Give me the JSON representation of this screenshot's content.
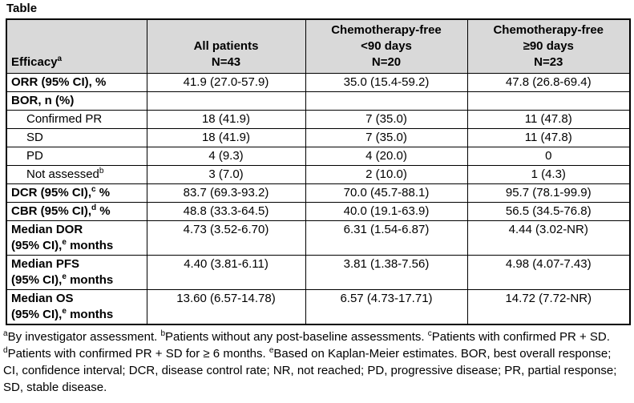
{
  "title": "Table",
  "colors": {
    "header_bg": "#d9d9d9",
    "border": "#000000",
    "text": "#000000",
    "page_bg": "#ffffff"
  },
  "table": {
    "header": {
      "efficacy_parts": [
        [
          "t",
          "Efficacy"
        ],
        [
          "sup",
          "a"
        ]
      ],
      "columns": [
        {
          "lines": [
            "All patients",
            "N=43"
          ]
        },
        {
          "lines": [
            "Chemotherapy-free",
            "<90 days",
            "N=20"
          ]
        },
        {
          "lines": [
            "Chemotherapy-free",
            "≥90 days",
            "N=23"
          ]
        }
      ]
    },
    "rows": [
      {
        "label_parts": [
          [
            "t",
            "ORR (95% CI), %"
          ]
        ],
        "bold": true,
        "indent": false,
        "values": [
          "41.9 (27.0-57.9)",
          "35.0 (15.4-59.2)",
          "47.8 (26.8-69.4)"
        ]
      },
      {
        "label_parts": [
          [
            "t",
            "BOR, n (%)"
          ]
        ],
        "bold": true,
        "indent": false,
        "values": [
          "",
          "",
          ""
        ]
      },
      {
        "label_parts": [
          [
            "t",
            "Confirmed PR"
          ]
        ],
        "bold": false,
        "indent": true,
        "values": [
          "18 (41.9)",
          "7 (35.0)",
          "11 (47.8)"
        ]
      },
      {
        "label_parts": [
          [
            "t",
            "SD"
          ]
        ],
        "bold": false,
        "indent": true,
        "values": [
          "18 (41.9)",
          "7 (35.0)",
          "11 (47.8)"
        ]
      },
      {
        "label_parts": [
          [
            "t",
            "PD"
          ]
        ],
        "bold": false,
        "indent": true,
        "values": [
          "4 (9.3)",
          "4 (20.0)",
          "0"
        ]
      },
      {
        "label_parts": [
          [
            "t",
            "Not assessed"
          ],
          [
            "sup",
            "b"
          ]
        ],
        "bold": false,
        "indent": true,
        "values": [
          "3 (7.0)",
          "2 (10.0)",
          "1 (4.3)"
        ]
      },
      {
        "label_parts": [
          [
            "t",
            "DCR (95% CI),"
          ],
          [
            "sup",
            "c"
          ],
          [
            "t",
            " %"
          ]
        ],
        "bold": true,
        "indent": false,
        "values": [
          "83.7 (69.3-93.2)",
          "70.0 (45.7-88.1)",
          "95.7 (78.1-99.9)"
        ]
      },
      {
        "label_parts": [
          [
            "t",
            "CBR (95% CI),"
          ],
          [
            "sup",
            "d"
          ],
          [
            "t",
            " %"
          ]
        ],
        "bold": true,
        "indent": false,
        "values": [
          "48.8 (33.3-64.5)",
          "40.0 (19.1-63.9)",
          "56.5 (34.5-76.8)"
        ]
      },
      {
        "label_parts": [
          [
            "t",
            "Median DOR"
          ],
          [
            "br"
          ],
          [
            "t",
            "(95% CI),"
          ],
          [
            "sup",
            "e"
          ],
          [
            "t",
            " months"
          ]
        ],
        "bold": true,
        "indent": false,
        "values": [
          "4.73 (3.52-6.70)",
          "6.31 (1.54-6.87)",
          "4.44 (3.02-NR)"
        ]
      },
      {
        "label_parts": [
          [
            "t",
            "Median PFS"
          ],
          [
            "br"
          ],
          [
            "t",
            "(95% CI),"
          ],
          [
            "sup",
            "e"
          ],
          [
            "t",
            " months"
          ]
        ],
        "bold": true,
        "indent": false,
        "values": [
          "4.40 (3.81-6.11)",
          "3.81 (1.38-7.56)",
          "4.98 (4.07-7.43)"
        ]
      },
      {
        "label_parts": [
          [
            "t",
            "Median OS"
          ],
          [
            "br"
          ],
          [
            "t",
            "(95% CI),"
          ],
          [
            "sup",
            "e"
          ],
          [
            "t",
            " months"
          ]
        ],
        "bold": true,
        "indent": false,
        "values": [
          "13.60 (6.57-14.78)",
          "6.57 (4.73-17.71)",
          "14.72 (7.72-NR)"
        ]
      }
    ]
  },
  "footnote_parts": [
    [
      "sup",
      "a"
    ],
    [
      "t",
      "By investigator assessment. "
    ],
    [
      "sup",
      "b"
    ],
    [
      "t",
      "Patients without any post-baseline assessments. "
    ],
    [
      "sup",
      "c"
    ],
    [
      "t",
      "Patients with confirmed PR + SD. "
    ],
    [
      "sup",
      "d"
    ],
    [
      "t",
      "Patients with confirmed PR + SD for ≥ 6 months. "
    ],
    [
      "sup",
      "e"
    ],
    [
      "t",
      "Based on Kaplan-Meier estimates. BOR, best overall response; CI, confidence interval; DCR, disease control rate; NR, not reached; PD, progressive disease; PR, partial response; SD, stable disease."
    ]
  ],
  "chart_data": {
    "type": "table",
    "title": "Table",
    "columns": [
      "Efficacy",
      "All patients N=43",
      "Chemotherapy-free <90 days N=20",
      "Chemotherapy-free ≥90 days N=23"
    ],
    "rows": [
      [
        "ORR (95% CI), %",
        "41.9 (27.0-57.9)",
        "35.0 (15.4-59.2)",
        "47.8 (26.8-69.4)"
      ],
      [
        "BOR, n (%)",
        "",
        "",
        ""
      ],
      [
        "Confirmed PR",
        "18 (41.9)",
        "7 (35.0)",
        "11 (47.8)"
      ],
      [
        "SD",
        "18 (41.9)",
        "7 (35.0)",
        "11 (47.8)"
      ],
      [
        "PD",
        "4 (9.3)",
        "4 (20.0)",
        "0"
      ],
      [
        "Not assessed",
        "3 (7.0)",
        "2 (10.0)",
        "1 (4.3)"
      ],
      [
        "DCR (95% CI), %",
        "83.7 (69.3-93.2)",
        "70.0 (45.7-88.1)",
        "95.7 (78.1-99.9)"
      ],
      [
        "CBR (95% CI), %",
        "48.8 (33.3-64.5)",
        "40.0 (19.1-63.9)",
        "56.5 (34.5-76.8)"
      ],
      [
        "Median DOR (95% CI), months",
        "4.73 (3.52-6.70)",
        "6.31 (1.54-6.87)",
        "4.44 (3.02-NR)"
      ],
      [
        "Median PFS (95% CI), months",
        "4.40 (3.81-6.11)",
        "3.81 (1.38-7.56)",
        "4.98 (4.07-7.43)"
      ],
      [
        "Median OS (95% CI), months",
        "13.60 (6.57-14.78)",
        "6.57 (4.73-17.71)",
        "14.72 (7.72-NR)"
      ]
    ]
  }
}
